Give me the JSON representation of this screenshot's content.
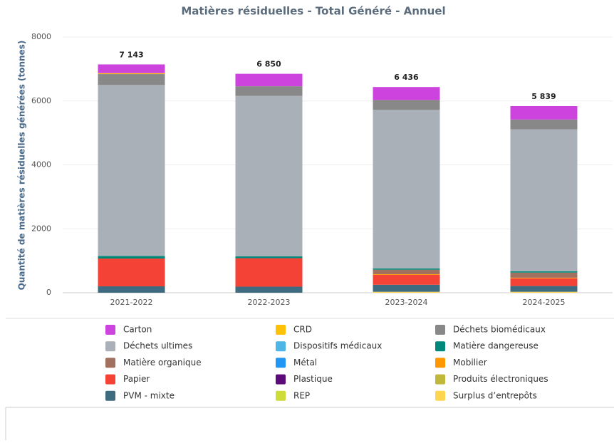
{
  "chart_data": {
    "type": "stacked_bar",
    "title": "Matières résiduelles - Total Généré - Annuel",
    "y_label": "Quantité de matières résiduelles générées (tonnes)",
    "categories": [
      "2021-2022",
      "2022-2023",
      "2023-2024",
      "2024-2025"
    ],
    "totals": [
      7143,
      6850,
      6436,
      5839
    ],
    "total_labels": [
      "7 143",
      "6 850",
      "6 436",
      "5 839"
    ],
    "ylim": [
      0,
      8000
    ],
    "yticks": [
      0,
      2000,
      4000,
      6000,
      8000
    ],
    "grid": true,
    "legend_position": "bottom",
    "series": [
      {
        "name": "Carton",
        "color": "#cc44dd",
        "values": [
          273,
          390,
          406,
          419
        ]
      },
      {
        "name": "CRD",
        "color": "#ffc107",
        "values": [
          30,
          0,
          0,
          0
        ]
      },
      {
        "name": "Déchets biomédicaux",
        "color": "#888888",
        "values": [
          340,
          300,
          310,
          310
        ]
      },
      {
        "name": "Déchets ultimes",
        "color": "#aab0b8",
        "values": [
          5350,
          5020,
          4960,
          4440
        ]
      },
      {
        "name": "Dispositifs médicaux",
        "color": "#4db6e6",
        "values": [
          0,
          0,
          0,
          0
        ]
      },
      {
        "name": "Matière dangereuse",
        "color": "#00897b",
        "values": [
          80,
          60,
          40,
          40
        ]
      },
      {
        "name": "Matière organique",
        "color": "#a1705e",
        "values": [
          0,
          0,
          140,
          160
        ]
      },
      {
        "name": "Métal",
        "color": "#2196f3",
        "values": [
          0,
          0,
          0,
          0
        ]
      },
      {
        "name": "Mobilier",
        "color": "#ff9800",
        "values": [
          0,
          0,
          20,
          20
        ]
      },
      {
        "name": "Papier",
        "color": "#f44336",
        "values": [
          870,
          890,
          310,
          240
        ]
      },
      {
        "name": "Plastique",
        "color": "#5c0a7a",
        "values": [
          0,
          0,
          0,
          0
        ]
      },
      {
        "name": "Produits électroniques",
        "color": "#c0b83a",
        "values": [
          0,
          0,
          0,
          0
        ]
      },
      {
        "name": "PVM - mixte",
        "color": "#3e6b80",
        "values": [
          200,
          190,
          220,
          180
        ]
      },
      {
        "name": "REP",
        "color": "#cddc39",
        "values": [
          0,
          0,
          0,
          0
        ]
      },
      {
        "name": "Surplus d’entrepôts",
        "color": "#ffd54f",
        "values": [
          0,
          0,
          30,
          30
        ]
      }
    ]
  }
}
